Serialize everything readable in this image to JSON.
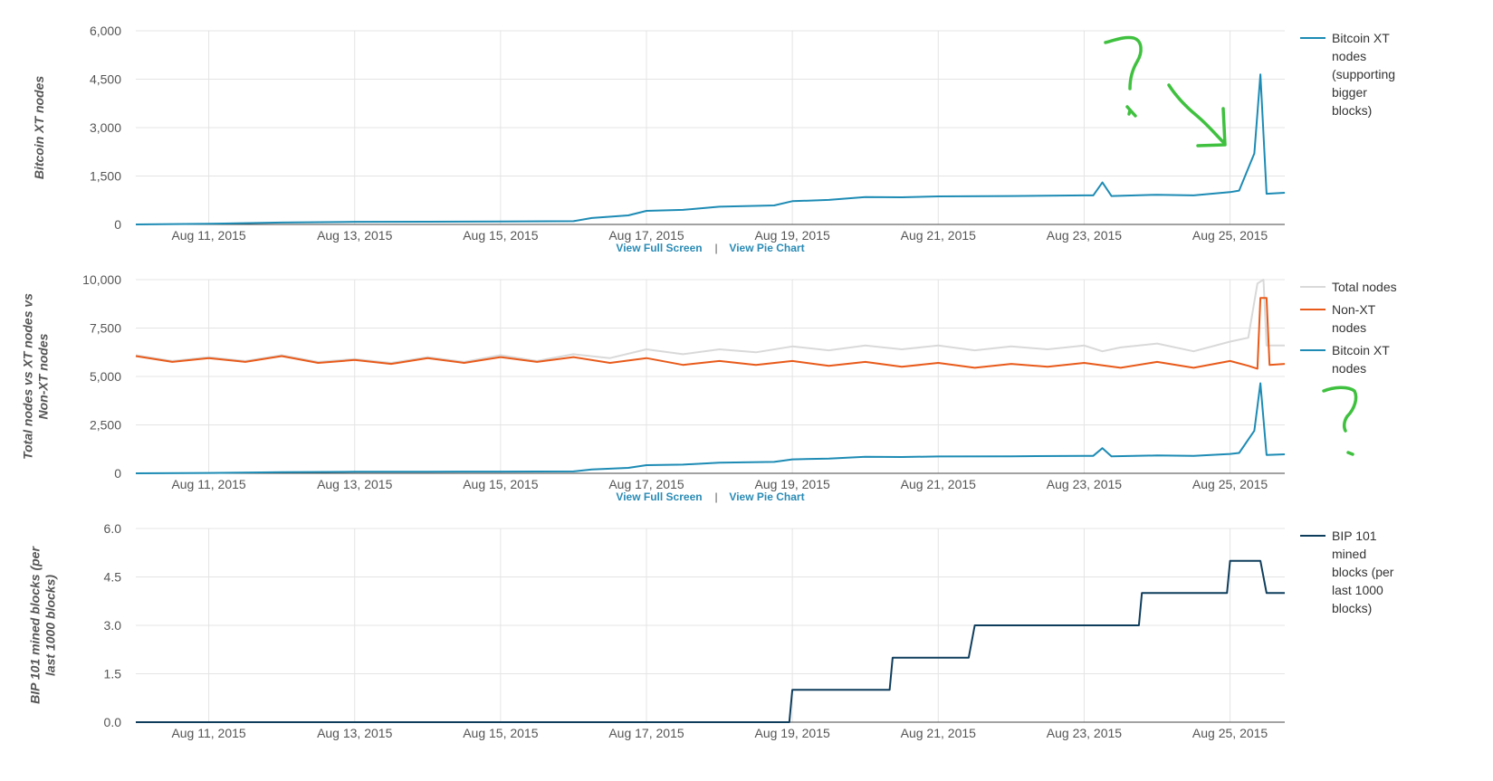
{
  "chart_data": [
    {
      "type": "line",
      "ylabel": "Bitcoin XT nodes",
      "ylim": [
        0,
        6000
      ],
      "yticks": [
        "6,000",
        "4,500",
        "3,000",
        "1,500",
        "0"
      ],
      "xticks": [
        "Aug 11, 2015",
        "Aug 13, 2015",
        "Aug 15, 2015",
        "Aug 17, 2015",
        "Aug 19, 2015",
        "Aug 21, 2015",
        "Aug 23, 2015",
        "Aug 25, 2015"
      ],
      "xrange": [
        "2015-08-10",
        "2015-08-25T18:00"
      ],
      "grid": true,
      "legend_position": "right",
      "links": [
        "View Full Screen",
        "|",
        "View Pie Chart"
      ],
      "series": [
        {
          "name": "Bitcoin XT nodes (supporting bigger blocks)",
          "legend_lines": [
            "Bitcoin XT",
            "nodes",
            "(supporting",
            "bigger",
            "blocks)"
          ],
          "color": "#1d8bb4",
          "points": [
            [
              "2015-08-10",
              0
            ],
            [
              "2015-08-11",
              20
            ],
            [
              "2015-08-12",
              60
            ],
            [
              "2015-08-13",
              80
            ],
            [
              "2015-08-14",
              85
            ],
            [
              "2015-08-15",
              90
            ],
            [
              "2015-08-16",
              100
            ],
            [
              "2015-08-16T06:00",
              200
            ],
            [
              "2015-08-16T18:00",
              280
            ],
            [
              "2015-08-17",
              420
            ],
            [
              "2015-08-17T12:00",
              450
            ],
            [
              "2015-08-18",
              550
            ],
            [
              "2015-08-18T18:00",
              590
            ],
            [
              "2015-08-19",
              720
            ],
            [
              "2015-08-19T12:00",
              760
            ],
            [
              "2015-08-20",
              850
            ],
            [
              "2015-08-20T12:00",
              840
            ],
            [
              "2015-08-21",
              870
            ],
            [
              "2015-08-22",
              880
            ],
            [
              "2015-08-23",
              900
            ],
            [
              "2015-08-23T03:00",
              900
            ],
            [
              "2015-08-23T06:00",
              1300
            ],
            [
              "2015-08-23T09:00",
              880
            ],
            [
              "2015-08-24",
              920
            ],
            [
              "2015-08-24T12:00",
              900
            ],
            [
              "2015-08-25",
              1000
            ],
            [
              "2015-08-25T03:00",
              1050
            ],
            [
              "2015-08-25T08:00",
              2200
            ],
            [
              "2015-08-25T10:00",
              4650
            ],
            [
              "2015-08-25T12:00",
              950
            ],
            [
              "2015-08-25T18:00",
              980
            ]
          ]
        }
      ]
    },
    {
      "type": "line",
      "ylabel": "Total nodes vs XT nodes vs Non-XT nodes",
      "ylabel_lines": [
        "Total nodes vs XT nodes vs",
        "Non-XT nodes"
      ],
      "ylim": [
        0,
        10000
      ],
      "yticks": [
        "10,000",
        "7,500",
        "5,000",
        "2,500",
        "0"
      ],
      "xticks": [
        "Aug 11, 2015",
        "Aug 13, 2015",
        "Aug 15, 2015",
        "Aug 17, 2015",
        "Aug 19, 2015",
        "Aug 21, 2015",
        "Aug 23, 2015",
        "Aug 25, 2015"
      ],
      "xrange": [
        "2015-08-10",
        "2015-08-25T18:00"
      ],
      "grid": true,
      "legend_position": "right",
      "links": [
        "View Full Screen",
        "|",
        "View Pie Chart"
      ],
      "series": [
        {
          "name": "Total nodes",
          "legend_lines": [
            "Total nodes"
          ],
          "color": "#d9d9d9",
          "points": [
            [
              "2015-08-10",
              6100
            ],
            [
              "2015-08-10T12:00",
              5800
            ],
            [
              "2015-08-11",
              6000
            ],
            [
              "2015-08-11T12:00",
              5800
            ],
            [
              "2015-08-12",
              6100
            ],
            [
              "2015-08-12T12:00",
              5750
            ],
            [
              "2015-08-13",
              5900
            ],
            [
              "2015-08-13T12:00",
              5700
            ],
            [
              "2015-08-14",
              6000
            ],
            [
              "2015-08-14T12:00",
              5750
            ],
            [
              "2015-08-15",
              6100
            ],
            [
              "2015-08-15T12:00",
              5800
            ],
            [
              "2015-08-16",
              6150
            ],
            [
              "2015-08-16T12:00",
              5950
            ],
            [
              "2015-08-17",
              6400
            ],
            [
              "2015-08-17T12:00",
              6150
            ],
            [
              "2015-08-18",
              6400
            ],
            [
              "2015-08-18T12:00",
              6250
            ],
            [
              "2015-08-19",
              6550
            ],
            [
              "2015-08-19T12:00",
              6350
            ],
            [
              "2015-08-20",
              6600
            ],
            [
              "2015-08-20T12:00",
              6400
            ],
            [
              "2015-08-21",
              6600
            ],
            [
              "2015-08-21T12:00",
              6350
            ],
            [
              "2015-08-22",
              6550
            ],
            [
              "2015-08-22T12:00",
              6400
            ],
            [
              "2015-08-23",
              6600
            ],
            [
              "2015-08-23T06:00",
              6300
            ],
            [
              "2015-08-23T12:00",
              6500
            ],
            [
              "2015-08-24",
              6700
            ],
            [
              "2015-08-24T12:00",
              6300
            ],
            [
              "2015-08-25",
              6800
            ],
            [
              "2015-08-25T06:00",
              7000
            ],
            [
              "2015-08-25T09:00",
              9800
            ],
            [
              "2015-08-25T11:00",
              10000
            ],
            [
              "2015-08-25T12:00",
              6600
            ],
            [
              "2015-08-25T18:00",
              6600
            ]
          ]
        },
        {
          "name": "Non-XT nodes",
          "legend_lines": [
            "Non-XT",
            "nodes"
          ],
          "color": "#e85a1a",
          "points": [
            [
              "2015-08-10",
              6050
            ],
            [
              "2015-08-10T12:00",
              5750
            ],
            [
              "2015-08-11",
              5950
            ],
            [
              "2015-08-11T12:00",
              5750
            ],
            [
              "2015-08-12",
              6050
            ],
            [
              "2015-08-12T12:00",
              5700
            ],
            [
              "2015-08-13",
              5850
            ],
            [
              "2015-08-13T12:00",
              5650
            ],
            [
              "2015-08-14",
              5950
            ],
            [
              "2015-08-14T12:00",
              5700
            ],
            [
              "2015-08-15",
              6000
            ],
            [
              "2015-08-15T12:00",
              5750
            ],
            [
              "2015-08-16",
              6000
            ],
            [
              "2015-08-16T12:00",
              5700
            ],
            [
              "2015-08-17",
              5950
            ],
            [
              "2015-08-17T12:00",
              5600
            ],
            [
              "2015-08-18",
              5800
            ],
            [
              "2015-08-18T12:00",
              5600
            ],
            [
              "2015-08-19",
              5800
            ],
            [
              "2015-08-19T12:00",
              5550
            ],
            [
              "2015-08-20",
              5750
            ],
            [
              "2015-08-20T12:00",
              5500
            ],
            [
              "2015-08-21",
              5700
            ],
            [
              "2015-08-21T12:00",
              5450
            ],
            [
              "2015-08-22",
              5650
            ],
            [
              "2015-08-22T12:00",
              5500
            ],
            [
              "2015-08-23",
              5700
            ],
            [
              "2015-08-23T12:00",
              5450
            ],
            [
              "2015-08-24",
              5750
            ],
            [
              "2015-08-24T12:00",
              5450
            ],
            [
              "2015-08-25",
              5800
            ],
            [
              "2015-08-25T06:00",
              5550
            ],
            [
              "2015-08-25T09:00",
              5400
            ],
            [
              "2015-08-25T10:00",
              9050
            ],
            [
              "2015-08-25T12:00",
              9050
            ],
            [
              "2015-08-25T13:00",
              5600
            ],
            [
              "2015-08-25T18:00",
              5650
            ]
          ]
        },
        {
          "name": "Bitcoin XT nodes",
          "legend_lines": [
            "Bitcoin XT",
            "nodes"
          ],
          "color": "#1d8bb4",
          "points": [
            [
              "2015-08-10",
              0
            ],
            [
              "2015-08-11",
              20
            ],
            [
              "2015-08-12",
              60
            ],
            [
              "2015-08-13",
              80
            ],
            [
              "2015-08-14",
              85
            ],
            [
              "2015-08-15",
              90
            ],
            [
              "2015-08-16",
              100
            ],
            [
              "2015-08-16T06:00",
              200
            ],
            [
              "2015-08-16T18:00",
              280
            ],
            [
              "2015-08-17",
              420
            ],
            [
              "2015-08-17T12:00",
              450
            ],
            [
              "2015-08-18",
              550
            ],
            [
              "2015-08-18T18:00",
              590
            ],
            [
              "2015-08-19",
              720
            ],
            [
              "2015-08-19T12:00",
              760
            ],
            [
              "2015-08-20",
              850
            ],
            [
              "2015-08-20T12:00",
              840
            ],
            [
              "2015-08-21",
              870
            ],
            [
              "2015-08-22",
              880
            ],
            [
              "2015-08-23",
              900
            ],
            [
              "2015-08-23T03:00",
              900
            ],
            [
              "2015-08-23T06:00",
              1300
            ],
            [
              "2015-08-23T09:00",
              880
            ],
            [
              "2015-08-24",
              920
            ],
            [
              "2015-08-24T12:00",
              900
            ],
            [
              "2015-08-25",
              1000
            ],
            [
              "2015-08-25T03:00",
              1050
            ],
            [
              "2015-08-25T08:00",
              2200
            ],
            [
              "2015-08-25T10:00",
              4650
            ],
            [
              "2015-08-25T12:00",
              950
            ],
            [
              "2015-08-25T18:00",
              980
            ]
          ]
        }
      ]
    },
    {
      "type": "line",
      "ylabel": "BIP 101 mined blocks (per last 1000 blocks)",
      "ylabel_lines": [
        "BIP 101 mined blocks (per",
        "last 1000 blocks)"
      ],
      "ylim": [
        0,
        6
      ],
      "yticks": [
        "6.0",
        "4.5",
        "3.0",
        "1.5",
        "0.0"
      ],
      "xticks": [
        "Aug 11, 2015",
        "Aug 13, 2015",
        "Aug 15, 2015",
        "Aug 17, 2015",
        "Aug 19, 2015",
        "Aug 21, 2015",
        "Aug 23, 2015",
        "Aug 25, 2015"
      ],
      "xrange": [
        "2015-08-10",
        "2015-08-25T18:00"
      ],
      "grid": true,
      "legend_position": "right",
      "series": [
        {
          "name": "BIP 101 mined blocks (per last 1000 blocks)",
          "legend_lines": [
            "BIP 101",
            "mined",
            "blocks (per",
            "last 1000",
            "blocks)"
          ],
          "color": "#0e3d5c",
          "points": [
            [
              "2015-08-10",
              0
            ],
            [
              "2015-08-18T23:00",
              0
            ],
            [
              "2015-08-19",
              1
            ],
            [
              "2015-08-20T08:00",
              1
            ],
            [
              "2015-08-20T09:00",
              2
            ],
            [
              "2015-08-21T10:00",
              2
            ],
            [
              "2015-08-21T12:00",
              3
            ],
            [
              "2015-08-23T18:00",
              3
            ],
            [
              "2015-08-23T19:00",
              4
            ],
            [
              "2015-08-24T23:00",
              4
            ],
            [
              "2015-08-25",
              5
            ],
            [
              "2015-08-25T10:00",
              5
            ],
            [
              "2015-08-25T12:00",
              4
            ],
            [
              "2015-08-25T18:00",
              4
            ]
          ]
        }
      ]
    }
  ],
  "annotations": {
    "color": "#3fc13f",
    "marks": [
      "question-mark",
      "arrow",
      "question-mark"
    ]
  }
}
